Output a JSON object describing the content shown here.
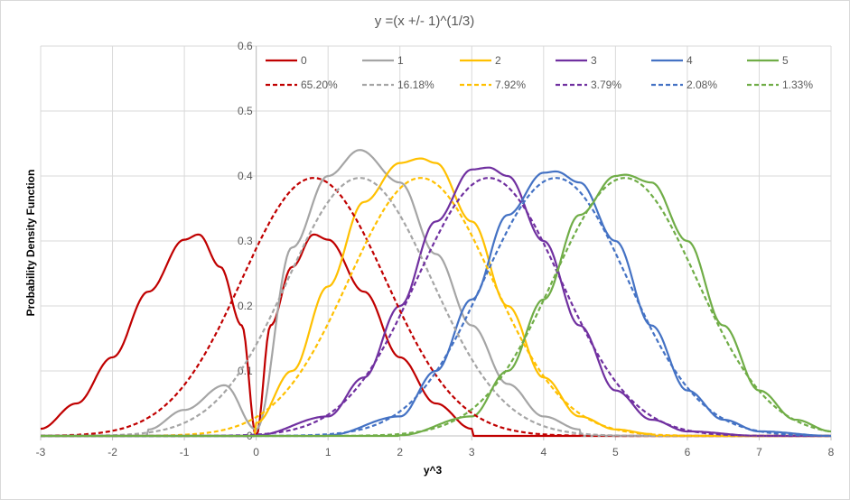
{
  "chart_data": {
    "type": "line",
    "title": "y =(x +/- 1)^(1/3)",
    "xlabel": "y^3",
    "ylabel": "Probability Density Function",
    "xlim": [
      -3,
      8
    ],
    "ylim": [
      0,
      0.6
    ],
    "x_ticks": [
      "-3",
      "-2",
      "-1",
      "0",
      "1",
      "2",
      "3",
      "4",
      "5",
      "6",
      "7",
      "8"
    ],
    "y_ticks": [
      "0",
      "0.1",
      "0.2",
      "0.3",
      "0.4",
      "0.5",
      "0.6"
    ],
    "grid": true,
    "legend_position": "top",
    "series": [
      {
        "name": "0",
        "color": "#C00000",
        "dash": false,
        "means": [
          0,
          0
        ],
        "x": [
          -3,
          -2.5,
          -2,
          -1.5,
          -1,
          -0.8,
          -0.5,
          -0.2,
          0,
          0.2,
          0.5,
          0.8,
          1,
          1.5,
          2,
          2.5,
          3
        ],
        "y": [
          0.011,
          0.05,
          0.121,
          0.222,
          0.302,
          0.31,
          0.26,
          0.17,
          0.0,
          0.17,
          0.26,
          0.31,
          0.302,
          0.222,
          0.121,
          0.05,
          0.011
        ]
      },
      {
        "name": "1",
        "color": "#A5A5A5",
        "dash": false,
        "means": [
          1.442,
          -0.442
        ],
        "x": [
          -1.5,
          -1,
          -0.44,
          0,
          0.5,
          1,
          1.442,
          2,
          2.5,
          3,
          3.5,
          4,
          4.5
        ],
        "y": [
          0.01,
          0.04,
          0.078,
          0.01,
          0.29,
          0.4,
          0.44,
          0.39,
          0.28,
          0.17,
          0.08,
          0.03,
          0.01
        ]
      },
      {
        "name": "2",
        "color": "#FFC000",
        "dash": false,
        "means": [
          2.289
        ],
        "x": [
          0,
          0.5,
          1,
          1.5,
          2,
          2.289,
          2.5,
          3,
          3.5,
          4,
          4.5,
          5,
          5.5
        ],
        "y": [
          0.02,
          0.1,
          0.23,
          0.36,
          0.42,
          0.427,
          0.42,
          0.33,
          0.2,
          0.09,
          0.03,
          0.01,
          0.003
        ]
      },
      {
        "name": "3",
        "color": "#7030A0",
        "dash": false,
        "means": [
          3.236
        ],
        "x": [
          0,
          1,
          1.5,
          2,
          2.5,
          3,
          3.236,
          3.5,
          4,
          4.5,
          5,
          5.5,
          6,
          7
        ],
        "y": [
          0.001,
          0.03,
          0.09,
          0.2,
          0.33,
          0.41,
          0.413,
          0.4,
          0.3,
          0.17,
          0.07,
          0.025,
          0.007,
          0.0
        ]
      },
      {
        "name": "4",
        "color": "#4472C4",
        "dash": false,
        "means": [
          4.171
        ],
        "x": [
          1,
          2,
          2.5,
          3,
          3.5,
          4,
          4.171,
          4.5,
          5,
          5.5,
          6,
          6.5,
          7,
          8
        ],
        "y": [
          0.001,
          0.03,
          0.1,
          0.21,
          0.34,
          0.405,
          0.407,
          0.39,
          0.3,
          0.17,
          0.07,
          0.025,
          0.007,
          0.0
        ]
      },
      {
        "name": "5",
        "color": "#70AD47",
        "dash": false,
        "means": [
          5.132
        ],
        "x": [
          2,
          3,
          3.5,
          4,
          4.5,
          5,
          5.132,
          5.5,
          6,
          6.5,
          7,
          7.5,
          8
        ],
        "y": [
          0.001,
          0.03,
          0.1,
          0.21,
          0.34,
          0.4,
          0.402,
          0.39,
          0.3,
          0.17,
          0.07,
          0.025,
          0.007
        ]
      },
      {
        "name": "65.20%",
        "color": "#C00000",
        "dash": true,
        "mean": 0.8,
        "x": [
          -3,
          -2,
          -1,
          0,
          0.8,
          1.5,
          2,
          3,
          4
        ],
        "y": [
          0.001,
          0.015,
          0.11,
          0.29,
          0.397,
          0.31,
          0.2,
          0.04,
          0.003
        ]
      },
      {
        "name": "16.18%",
        "color": "#A5A5A5",
        "dash": true,
        "mean": 1.442,
        "x": [
          -2,
          -1,
          0,
          1,
          1.442,
          2,
          3,
          4,
          5
        ],
        "y": [
          0.001,
          0.02,
          0.14,
          0.36,
          0.397,
          0.34,
          0.11,
          0.012,
          0.0
        ]
      },
      {
        "name": "7.92%",
        "color": "#FFC000",
        "dash": true,
        "mean": 2.289,
        "x": [
          -1,
          0,
          1,
          2,
          2.289,
          3,
          4,
          5,
          6
        ],
        "y": [
          0.001,
          0.03,
          0.17,
          0.38,
          0.397,
          0.31,
          0.09,
          0.01,
          0.0
        ]
      },
      {
        "name": "3.79%",
        "color": "#7030A0",
        "dash": true,
        "mean": 3.236,
        "x": [
          0,
          1,
          2,
          3,
          3.236,
          4,
          5,
          6,
          7
        ],
        "y": [
          0.002,
          0.03,
          0.18,
          0.39,
          0.397,
          0.3,
          0.08,
          0.009,
          0.0
        ]
      },
      {
        "name": "2.08%",
        "color": "#4472C4",
        "dash": true,
        "mean": 4.171,
        "x": [
          1,
          2,
          3,
          4,
          4.171,
          5,
          6,
          7,
          8
        ],
        "y": [
          0.002,
          0.04,
          0.2,
          0.39,
          0.397,
          0.29,
          0.07,
          0.006,
          0.0
        ]
      },
      {
        "name": "1.33%",
        "color": "#70AD47",
        "dash": true,
        "mean": 5.132,
        "x": [
          2,
          3,
          4,
          5,
          5.132,
          6,
          7,
          8
        ],
        "y": [
          0.002,
          0.04,
          0.21,
          0.395,
          0.397,
          0.28,
          0.07,
          0.006
        ]
      }
    ]
  }
}
